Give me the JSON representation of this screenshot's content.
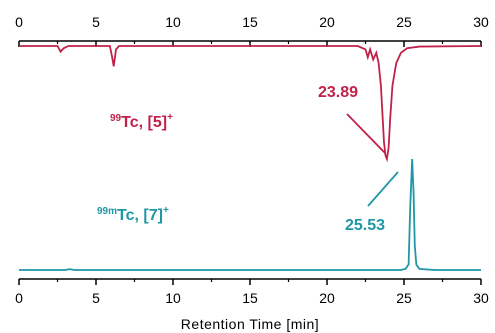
{
  "chart_data": {
    "type": "line",
    "title": "",
    "xlabel": "Retention Time [min]",
    "ylabel": "",
    "xlim": [
      0,
      30
    ],
    "xticks": [
      "0",
      "5",
      "10",
      "15",
      "20",
      "25",
      "30"
    ],
    "grid": false,
    "series": [
      {
        "label_sup": "99",
        "label_main": "Tc, [5]",
        "label_charge": "+",
        "color": "#c0224a",
        "peak_label": "23.89",
        "x": [
          0,
          2.5,
          2.7,
          2.9,
          3.2,
          5.9,
          6.05,
          6.15,
          6.3,
          6.5,
          22.0,
          22.5,
          22.65,
          22.8,
          23.0,
          23.2,
          23.35,
          23.5,
          23.6,
          23.7,
          23.8,
          23.89,
          24.0,
          24.1,
          24.25,
          24.5,
          24.8,
          25.2,
          26.0,
          30
        ],
        "y": [
          0,
          0,
          -0.05,
          -0.02,
          0,
          0,
          -0.1,
          -0.18,
          -0.03,
          0,
          0,
          -0.03,
          -0.1,
          -0.03,
          -0.12,
          -0.06,
          -0.15,
          -0.35,
          -0.6,
          -0.85,
          -0.97,
          -1.0,
          -0.9,
          -0.65,
          -0.35,
          -0.15,
          -0.06,
          -0.02,
          -0.005,
          0
        ]
      },
      {
        "label_sup": "99m",
        "label_main": "Tc, [7]",
        "label_charge": "+",
        "color": "#1f97a6",
        "peak_label": "25.53",
        "x": [
          0,
          3.0,
          3.3,
          3.6,
          24.8,
          25.1,
          25.3,
          25.4,
          25.53,
          25.62,
          25.7,
          25.8,
          26.0,
          27.0,
          30
        ],
        "y": [
          0,
          0,
          0.008,
          0,
          0,
          0.01,
          0.05,
          0.55,
          1.0,
          0.7,
          0.22,
          0.05,
          0.01,
          0,
          0
        ]
      }
    ]
  }
}
